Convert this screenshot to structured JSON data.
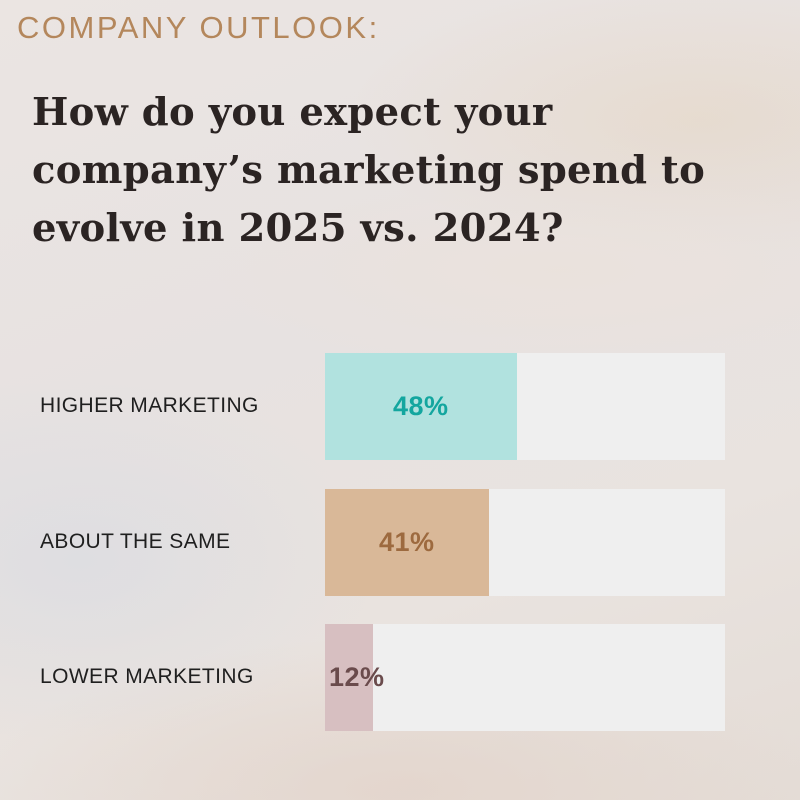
{
  "header": {
    "eyebrow": "COMPANY OUTLOOK:",
    "question": "How do you expect your company’s marketing spend to evolve in 2025 vs. 2024?"
  },
  "colors": {
    "eyebrow": "#b4875c",
    "question": "#2b2423",
    "track": "#efefef"
  },
  "chart_data": {
    "type": "bar",
    "orientation": "horizontal",
    "title": "How do you expect your company’s marketing spend to evolve in 2025 vs. 2024?",
    "categories": [
      "HIGHER MARKETING",
      "ABOUT THE SAME",
      "LOWER MARKETING"
    ],
    "values": [
      48,
      41,
      12
    ],
    "value_labels": [
      "48%",
      "41%",
      "12%"
    ],
    "unit": "%",
    "xlim": [
      0,
      100
    ],
    "grid": false,
    "legend": "none",
    "bar_colors": [
      "#b1e2df",
      "#d9b898",
      "#d7bfc1"
    ],
    "label_colors": [
      "#13a69f",
      "#9d6a3f",
      "#6a4b4c"
    ]
  }
}
